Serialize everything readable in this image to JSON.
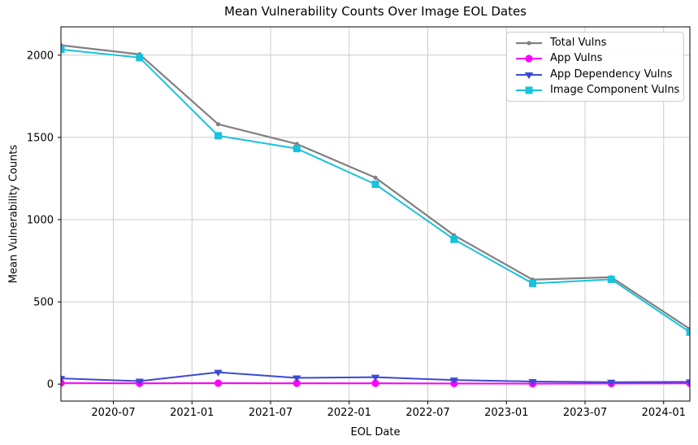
{
  "title": "Mean Vulnerability Counts Over Image EOL Dates",
  "xlabel": "EOL Date",
  "ylabel": "Mean Vulnerability Counts",
  "chart_data": {
    "type": "line",
    "title": "Mean Vulnerability Counts Over Image EOL Dates",
    "xlabel": "EOL Date",
    "ylabel": "Mean Vulnerability Counts",
    "grid": true,
    "legend_position": "upper right",
    "x_dates": [
      "2020-03",
      "2020-09",
      "2021-03",
      "2021-09",
      "2022-03",
      "2022-09",
      "2023-03",
      "2023-09",
      "2024-03"
    ],
    "x_months": [
      0,
      6,
      12,
      18,
      24,
      30,
      36,
      42,
      48
    ],
    "xlim_months": [
      0,
      48
    ],
    "ylim": [
      -103,
      2172
    ],
    "x_tick_labels": [
      "2020-07",
      "2021-01",
      "2021-07",
      "2022-01",
      "2022-07",
      "2023-01",
      "2023-07",
      "2024-01"
    ],
    "x_tick_months": [
      4,
      10,
      16,
      22,
      28,
      34,
      40,
      46
    ],
    "y_ticks": [
      0,
      500,
      1000,
      1500,
      2000
    ],
    "grid_color": "#cccccc",
    "spine_color": "#000000",
    "series": [
      {
        "name": "Total Vulns",
        "color": "#808080",
        "marker": "circle-small",
        "line_width": 2.2,
        "values": [
          2060,
          2005,
          1580,
          1460,
          1255,
          905,
          635,
          650,
          335
        ]
      },
      {
        "name": "App Vulns",
        "color": "#ff00ff",
        "marker": "circle",
        "line_width": 2,
        "values": [
          7,
          5,
          6,
          5,
          5,
          4,
          3,
          4,
          5
        ]
      },
      {
        "name": "App Dependency Vulns",
        "color": "#3b4ad2",
        "marker": "triangle-down",
        "line_width": 2,
        "values": [
          35,
          18,
          72,
          38,
          42,
          25,
          16,
          12,
          14
        ]
      },
      {
        "name": "Image Component Vulns",
        "color": "#17c3dc",
        "marker": "square",
        "line_width": 2,
        "values": [
          2035,
          1985,
          1510,
          1432,
          1215,
          880,
          612,
          637,
          316
        ]
      }
    ]
  }
}
